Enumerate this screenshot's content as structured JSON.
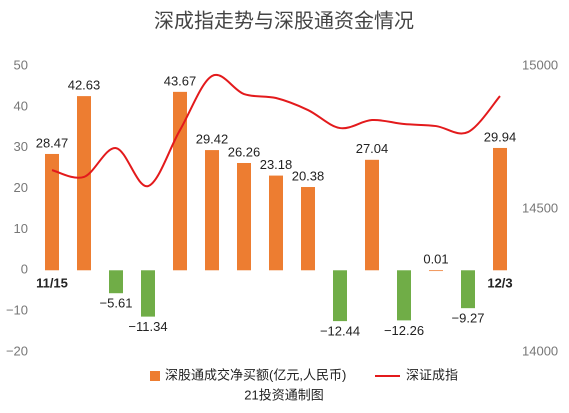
{
  "chart_data": {
    "type": "bar-line",
    "title": "深成指走势与深股通资金情况",
    "source": "21投资通制图",
    "categories": [
      "11/15",
      null,
      null,
      null,
      null,
      null,
      null,
      null,
      null,
      null,
      null,
      null,
      null,
      null,
      "12/3"
    ],
    "series": [
      {
        "name": "深股通成交净买额(亿元,人民币)",
        "type": "bar",
        "color": "#ED7D31",
        "negative_color": "#70AD47",
        "values": [
          28.47,
          42.63,
          -5.61,
          -11.34,
          43.67,
          29.42,
          26.26,
          23.18,
          20.38,
          -12.44,
          27.04,
          -12.26,
          0.01,
          -9.27,
          29.94
        ],
        "value_labels": [
          "28.47",
          "42.63",
          "−5.61",
          "−11.34",
          "43.67",
          "29.42",
          "26.26",
          "23.18",
          "20.38",
          "−12.44",
          "27.04",
          "−12.26",
          "0.01",
          "−9.27",
          "29.94"
        ]
      },
      {
        "name": "深证成指",
        "type": "line",
        "axis": "y2",
        "color": "#E31A1C",
        "values": [
          14636,
          14612,
          14713,
          14580,
          14776,
          14965,
          14902,
          14888,
          14846,
          14783,
          14811,
          14797,
          14790,
          14769,
          14895
        ]
      }
    ],
    "ylim": [
      -20,
      50
    ],
    "yticks": [
      {
        "value": -20,
        "label": "−20"
      },
      {
        "value": -10,
        "label": "−10"
      },
      0,
      10,
      20,
      30,
      40,
      50
    ],
    "y2lim": [
      14000,
      15000
    ],
    "y2ticks": [
      14000,
      14500,
      15000
    ],
    "grid": false,
    "legend": "bottom"
  }
}
